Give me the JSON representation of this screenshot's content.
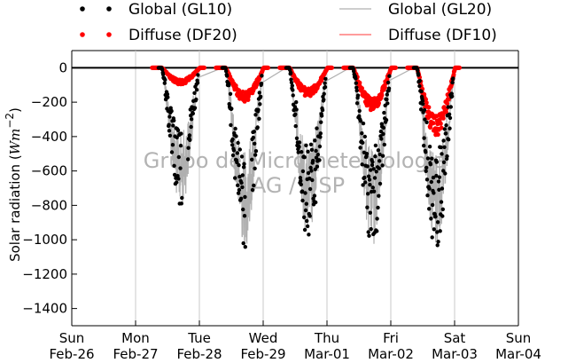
{
  "chart_data": {
    "type": "scatter",
    "ylabel": "Solar radiation (W m⁻²)",
    "xlabel": "",
    "ylim": [
      -1500,
      100
    ],
    "xlim": [
      "Sun Feb-26",
      "Sun Mar-04"
    ],
    "yticks": [
      0,
      -200,
      -400,
      -600,
      -800,
      -1000,
      -1200,
      -1400
    ],
    "xticks": [
      {
        "day": "Sun",
        "date": "Feb-26"
      },
      {
        "day": "Mon",
        "date": "Feb-27"
      },
      {
        "day": "Tue",
        "date": "Feb-28"
      },
      {
        "day": "Wed",
        "date": "Feb-29"
      },
      {
        "day": "Thu",
        "date": "Mar-01"
      },
      {
        "day": "Fri",
        "date": "Mar-02"
      },
      {
        "day": "Sat",
        "date": "Mar-03"
      },
      {
        "day": "Sun",
        "date": "Mar-04"
      }
    ],
    "grid": "vertical",
    "legend_position": "top",
    "watermark": [
      "Grupo de Micrometeorologia",
      "IAG / USP"
    ],
    "series": [
      {
        "name": "Global (GL10)",
        "style": "dots",
        "color": "#000000",
        "days": [
          {
            "day_index": 1.67,
            "peak": -820,
            "gaps": [
              [
                1.73,
                1.82
              ]
            ]
          },
          {
            "day_index": 2.67,
            "peak": -1050,
            "gaps": [
              [
                2.72,
                2.82
              ]
            ]
          },
          {
            "day_index": 3.67,
            "peak": -1000
          },
          {
            "day_index": 4.67,
            "peak": -1050
          },
          {
            "day_index": 5.67,
            "peak": -1060
          }
        ]
      },
      {
        "name": "Diffuse (DF20)",
        "style": "dots",
        "color": "#ff0000",
        "days": [
          {
            "day_index": 1.67,
            "peak": -100
          },
          {
            "day_index": 2.67,
            "peak": -200
          },
          {
            "day_index": 3.67,
            "peak": -170
          },
          {
            "day_index": 4.67,
            "peak": -250
          },
          {
            "day_index": 5.67,
            "peak": -400
          }
        ]
      },
      {
        "name": "Global (GL20)",
        "style": "line",
        "color": "#b0b0b0"
      },
      {
        "name": "Diffuse (DF10)",
        "style": "line",
        "color": "#ff6060"
      }
    ]
  }
}
